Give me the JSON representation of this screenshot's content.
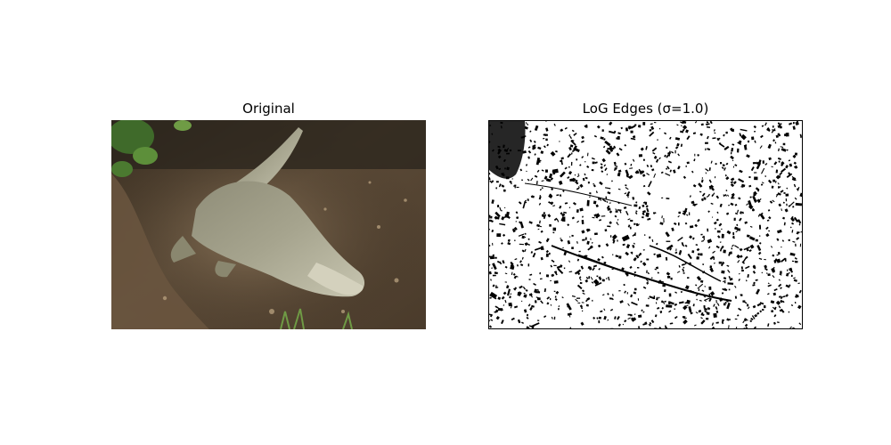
{
  "panels": {
    "original": {
      "title": "Original"
    },
    "edges": {
      "title": "LoG Edges (σ=1.0)"
    }
  }
}
